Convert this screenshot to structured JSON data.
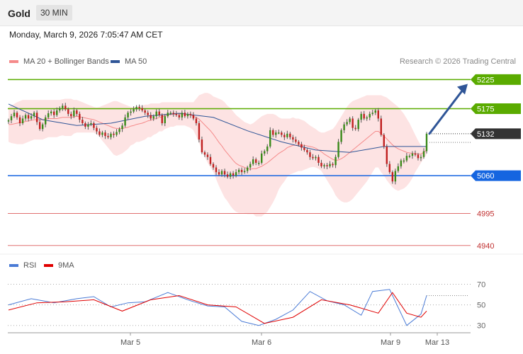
{
  "header": {
    "instrument": "Gold",
    "timeframe": "30 MIN",
    "timestamp": "Monday, March 9, 2026 7:05:47 AM CET",
    "credit": "Research © 2026 Trading Central"
  },
  "colors": {
    "resistance": "#5aab00",
    "support": "#1565e0",
    "lower_levels": "#e07070",
    "current_price": "#333333",
    "bollinger_band": "#fde3e3",
    "ma20": "#f58a8a",
    "ma50": "#2f5597",
    "candle_up": "#3a8a1a",
    "candle_down": "#c02020",
    "forecast_arrow": "#2f5597",
    "rsi": "#4a7bd6",
    "rsi_ma": "#e00000"
  },
  "chart_data": [
    {
      "type": "candlestick",
      "title": "",
      "legend": [
        {
          "label": "MA 20 + Bollinger Bands",
          "color": "#f58a8a"
        },
        {
          "label": "MA 50",
          "color": "#2f5597"
        }
      ],
      "x_labels": [
        "Mar 5",
        "Mar 6",
        "Mar 9",
        "Mar 13"
      ],
      "ylim": [
        4930,
        5240
      ],
      "levels": [
        {
          "value": 5225,
          "label": "5225",
          "kind": "resistance"
        },
        {
          "value": 5175,
          "label": "5175",
          "kind": "resistance"
        },
        {
          "value": 5132,
          "label": "5132",
          "kind": "current"
        },
        {
          "value": 5060,
          "label": "5060",
          "kind": "support"
        },
        {
          "value": 4995,
          "label": "4995",
          "kind": "lower"
        },
        {
          "value": 4940,
          "label": "4940",
          "kind": "lower"
        }
      ],
      "forecast": {
        "from": 5132,
        "to": 5220
      },
      "close": [
        5155,
        5162,
        5168,
        5160,
        5150,
        5158,
        5164,
        5158,
        5162,
        5168,
        5152,
        5140,
        5148,
        5160,
        5167,
        5170,
        5164,
        5172,
        5176,
        5180,
        5174,
        5166,
        5162,
        5172,
        5166,
        5156,
        5150,
        5144,
        5148,
        5150,
        5142,
        5136,
        5130,
        5134,
        5128,
        5126,
        5132,
        5130,
        5135,
        5140,
        5146,
        5160,
        5168,
        5170,
        5174,
        5178,
        5176,
        5172,
        5168,
        5164,
        5158,
        5162,
        5170,
        5164,
        5150,
        5162,
        5168,
        5168,
        5166,
        5164,
        5160,
        5168,
        5162,
        5166,
        5164,
        5158,
        5150,
        5122,
        5100,
        5096,
        5092,
        5080,
        5074,
        5066,
        5062,
        5068,
        5062,
        5058,
        5064,
        5060,
        5066,
        5070,
        5066,
        5068,
        5074,
        5080,
        5088,
        5082,
        5082,
        5098,
        5102,
        5110,
        5138,
        5130,
        5134,
        5134,
        5130,
        5126,
        5132,
        5126,
        5122,
        5118,
        5114,
        5108,
        5104,
        5100,
        5092,
        5090,
        5092,
        5082,
        5076,
        5078,
        5076,
        5080,
        5078,
        5092,
        5118,
        5138,
        5148,
        5152,
        5158,
        5142,
        5140,
        5156,
        5166,
        5158,
        5160,
        5166,
        5168,
        5172,
        5158,
        5130,
        5110,
        5080,
        5066,
        5050,
        5068,
        5076,
        5086,
        5086,
        5094,
        5094,
        5098,
        5096,
        5090,
        5092,
        5102,
        5132
      ],
      "ma20": [
        5148,
        5148,
        5149,
        5150,
        5151,
        5152,
        5153,
        5154,
        5155,
        5156,
        5156,
        5156,
        5156,
        5157,
        5158,
        5158,
        5158,
        5158,
        5159,
        5160,
        5160,
        5160,
        5160,
        5161,
        5162,
        5161,
        5160,
        5159,
        5158,
        5157,
        5156,
        5154,
        5152,
        5150,
        5148,
        5146,
        5144,
        5142,
        5141,
        5141,
        5141,
        5142,
        5143,
        5145,
        5146,
        5148,
        5149,
        5150,
        5152,
        5154,
        5155,
        5157,
        5158,
        5160,
        5161,
        5163,
        5164,
        5165,
        5165,
        5166,
        5166,
        5166,
        5166,
        5165,
        5164,
        5162,
        5160,
        5157,
        5152,
        5147,
        5142,
        5137,
        5131,
        5124,
        5117,
        5111,
        5104,
        5098,
        5092,
        5086,
        5081,
        5078,
        5076,
        5074,
        5072,
        5071,
        5072,
        5072,
        5074,
        5076,
        5079,
        5082,
        5086,
        5090,
        5094,
        5098,
        5101,
        5104,
        5108,
        5110,
        5112,
        5112,
        5113,
        5112,
        5112,
        5111,
        5110,
        5109,
        5107,
        5104,
        5101,
        5097,
        5094,
        5091,
        5088,
        5086,
        5087,
        5089,
        5092,
        5096,
        5100,
        5104,
        5108,
        5112,
        5116,
        5120,
        5124,
        5128,
        5132,
        5136,
        5136,
        5132,
        5128,
        5123,
        5118,
        5113,
        5109,
        5106,
        5104,
        5102,
        5100,
        5099,
        5098,
        5098,
        5097,
        5097,
        5100,
        5104
      ],
      "bb_upper": [
        5178,
        5180,
        5183,
        5186,
        5188,
        5190,
        5190,
        5190,
        5190,
        5190,
        5190,
        5190,
        5190,
        5190,
        5190,
        5190,
        5190,
        5190,
        5190,
        5191,
        5192,
        5192,
        5192,
        5190,
        5190,
        5188,
        5186,
        5184,
        5182,
        5180,
        5178,
        5177,
        5178,
        5180,
        5182,
        5184,
        5186,
        5188,
        5188,
        5186,
        5184,
        5182,
        5180,
        5178,
        5178,
        5178,
        5180,
        5180,
        5182,
        5182,
        5184,
        5184,
        5184,
        5184,
        5186,
        5186,
        5186,
        5186,
        5186,
        5186,
        5186,
        5186,
        5186,
        5186,
        5186,
        5186,
        5192,
        5198,
        5200,
        5202,
        5202,
        5200,
        5196,
        5194,
        5192,
        5190,
        5186,
        5180,
        5176,
        5170,
        5164,
        5160,
        5156,
        5152,
        5150,
        5148,
        5150,
        5154,
        5158,
        5162,
        5164,
        5166,
        5166,
        5166,
        5164,
        5160,
        5158,
        5158,
        5158,
        5158,
        5160,
        5158,
        5158,
        5156,
        5154,
        5150,
        5146,
        5143,
        5140,
        5136,
        5134,
        5134,
        5136,
        5138,
        5140,
        5146,
        5154,
        5162,
        5170,
        5178,
        5184,
        5188,
        5190,
        5192,
        5194,
        5196,
        5198,
        5198,
        5198,
        5198,
        5198,
        5198,
        5196,
        5194,
        5190,
        5186,
        5182,
        5178,
        5172,
        5166,
        5158,
        5150,
        5140,
        5130,
        5120,
        5112,
        5110,
        5112
      ],
      "bb_lower": [
        5118,
        5116,
        5115,
        5114,
        5114,
        5114,
        5116,
        5118,
        5120,
        5122,
        5122,
        5122,
        5122,
        5124,
        5126,
        5126,
        5126,
        5126,
        5128,
        5129,
        5128,
        5128,
        5128,
        5132,
        5134,
        5134,
        5134,
        5134,
        5134,
        5134,
        5134,
        5131,
        5126,
        5120,
        5114,
        5108,
        5102,
        5096,
        5094,
        5096,
        5098,
        5102,
        5106,
        5112,
        5114,
        5118,
        5118,
        5120,
        5122,
        5126,
        5126,
        5130,
        5132,
        5136,
        5136,
        5140,
        5142,
        5144,
        5144,
        5146,
        5146,
        5146,
        5146,
        5144,
        5142,
        5138,
        5128,
        5116,
        5104,
        5092,
        5082,
        5074,
        5066,
        5054,
        5042,
        5032,
        5022,
        5016,
        5008,
        5002,
        4998,
        4996,
        4996,
        4996,
        4994,
        4994,
        4994,
        4990,
        4990,
        4990,
        4994,
        4998,
        5006,
        5014,
        5024,
        5036,
        5044,
        5050,
        5058,
        5062,
        5064,
        5066,
        5068,
        5068,
        5070,
        5072,
        5074,
        5075,
        5074,
        5072,
        5068,
        5060,
        5052,
        5044,
        5036,
        5026,
        5020,
        5016,
        5014,
        5014,
        5016,
        5020,
        5026,
        5032,
        5038,
        5044,
        5050,
        5058,
        5066,
        5074,
        5074,
        5066,
        5060,
        5052,
        5046,
        5040,
        5036,
        5034,
        5036,
        5038,
        5042,
        5048,
        5056,
        5066,
        5074,
        5082,
        5090,
        5096
      ],
      "ma50_points": {
        "x": [
          0,
          12,
          24,
          36,
          48,
          60,
          72,
          84,
          96,
          108,
          120,
          132,
          147
        ],
        "y": [
          5183,
          5156,
          5146,
          5150,
          5162,
          5167,
          5160,
          5137,
          5118,
          5104,
          5100,
          5110,
          5110
        ]
      }
    },
    {
      "type": "line",
      "title": "",
      "legend": [
        {
          "label": "RSI",
          "color": "#4a7bd6"
        },
        {
          "label": "9MA",
          "color": "#e00000"
        }
      ],
      "ylim": [
        25,
        80
      ],
      "yticks": [
        70,
        50,
        30
      ],
      "dotted_level": 59,
      "rsi_points": {
        "x": [
          0,
          8,
          16,
          24,
          30,
          36,
          42,
          48,
          56,
          64,
          70,
          76,
          82,
          88,
          94,
          100,
          106,
          112,
          118,
          124,
          128,
          134,
          140,
          145,
          147
        ],
        "y": [
          50,
          56,
          52,
          56,
          58,
          48,
          52,
          53,
          62,
          54,
          49,
          48,
          34,
          30,
          36,
          45,
          63,
          54,
          50,
          40,
          63,
          65,
          30,
          41,
          59
        ]
      },
      "ma9_points": {
        "x": [
          0,
          10,
          20,
          30,
          40,
          50,
          60,
          70,
          80,
          90,
          100,
          110,
          120,
          130,
          135,
          140,
          145,
          147
        ],
        "y": [
          45,
          52,
          53,
          55,
          44,
          55,
          59,
          50,
          48,
          32,
          38,
          55,
          50,
          42,
          62,
          42,
          38,
          44
        ]
      }
    }
  ]
}
